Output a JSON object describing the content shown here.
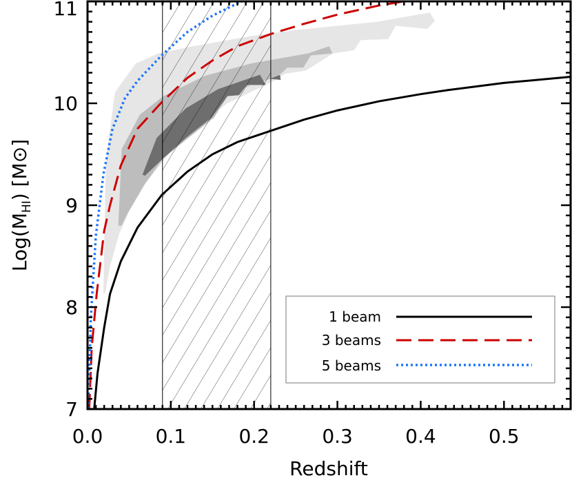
{
  "chart_data": {
    "type": "line",
    "xlabel": "Redshift",
    "ylabel": {
      "prefix": "Log(M",
      "sub": "HI",
      "suffix": ")  [M⊙]"
    },
    "xlim": [
      0,
      0.58
    ],
    "ylim": [
      7,
      11
    ],
    "xticks": [
      0.0,
      0.1,
      0.2,
      0.3,
      0.4,
      0.5
    ],
    "xtick_labels": [
      "0.0",
      "0.1",
      "0.2",
      "0.3",
      "0.4",
      "0.5"
    ],
    "yticks": [
      7,
      8,
      9,
      10,
      11
    ],
    "ytick_labels": [
      "7",
      "8",
      "9",
      "10",
      "11"
    ],
    "grid": false,
    "legend_position": "bottom-right",
    "shaded_band": {
      "x_range": [
        0.09,
        0.22
      ],
      "pattern": "diagonal-hatch"
    },
    "series": [
      {
        "name": "1 beam",
        "color": "#000000",
        "style": "solid",
        "x": [
          0.008,
          0.012,
          0.02,
          0.027,
          0.04,
          0.06,
          0.089,
          0.12,
          0.15,
          0.18,
          0.22,
          0.26,
          0.3,
          0.35,
          0.4,
          0.433,
          0.5,
          0.58
        ],
        "y": [
          7.0,
          7.35,
          7.8,
          8.13,
          8.45,
          8.78,
          9.1,
          9.33,
          9.5,
          9.62,
          9.73,
          9.84,
          9.93,
          10.02,
          10.09,
          10.13,
          10.2,
          10.26
        ]
      },
      {
        "name": "3 beams",
        "color": "#cc0000",
        "style": "dashed",
        "x": [
          0.002,
          0.005,
          0.011,
          0.02,
          0.027,
          0.04,
          0.06,
          0.089,
          0.12,
          0.15,
          0.18,
          0.22,
          0.26,
          0.3,
          0.35,
          0.38
        ],
        "y": [
          7.0,
          7.6,
          8.13,
          8.75,
          9.0,
          9.39,
          9.75,
          10.01,
          10.25,
          10.42,
          10.56,
          10.68,
          10.78,
          10.87,
          10.96,
          11.0
        ]
      },
      {
        "name": "5 beams",
        "color": "#1a75ff",
        "style": "dotted",
        "x": [
          0.001,
          0.004,
          0.01,
          0.019,
          0.03,
          0.045,
          0.06,
          0.089,
          0.12,
          0.15,
          0.185
        ],
        "y": [
          7.0,
          7.9,
          8.7,
          9.3,
          9.75,
          10.05,
          10.22,
          10.47,
          10.7,
          10.86,
          11.0
        ]
      }
    ],
    "contours": [
      {
        "level": "outer",
        "color": "#e6e6e6",
        "points": [
          [
            0.019,
            8.14
          ],
          [
            0.022,
            9.44
          ],
          [
            0.033,
            10.11
          ],
          [
            0.058,
            10.39
          ],
          [
            0.085,
            10.49
          ],
          [
            0.127,
            10.56
          ],
          [
            0.196,
            10.66
          ],
          [
            0.251,
            10.72
          ],
          [
            0.348,
            10.8
          ],
          [
            0.411,
            10.89
          ],
          [
            0.417,
            10.81
          ],
          [
            0.408,
            10.73
          ],
          [
            0.37,
            10.76
          ],
          [
            0.361,
            10.63
          ],
          [
            0.328,
            10.62
          ],
          [
            0.32,
            10.52
          ],
          [
            0.295,
            10.49
          ],
          [
            0.262,
            10.32
          ],
          [
            0.237,
            10.29
          ],
          [
            0.224,
            10.22
          ],
          [
            0.168,
            10.0
          ],
          [
            0.113,
            9.66
          ],
          [
            0.069,
            9.21
          ],
          [
            0.05,
            8.94
          ],
          [
            0.038,
            8.72
          ],
          [
            0.027,
            8.4
          ],
          [
            0.021,
            8.13
          ]
        ]
      },
      {
        "level": "middle",
        "color": "#bdbdbd",
        "points": [
          [
            0.037,
            8.8
          ],
          [
            0.041,
            9.55
          ],
          [
            0.063,
            9.89
          ],
          [
            0.091,
            10.07
          ],
          [
            0.141,
            10.27
          ],
          [
            0.196,
            10.39
          ],
          [
            0.265,
            10.49
          ],
          [
            0.29,
            10.56
          ],
          [
            0.294,
            10.49
          ],
          [
            0.268,
            10.47
          ],
          [
            0.259,
            10.35
          ],
          [
            0.24,
            10.35
          ],
          [
            0.232,
            10.29
          ],
          [
            0.22,
            10.24
          ],
          [
            0.196,
            10.18
          ],
          [
            0.168,
            10.07
          ],
          [
            0.152,
            9.86
          ],
          [
            0.121,
            9.66
          ],
          [
            0.091,
            9.46
          ],
          [
            0.069,
            9.21
          ],
          [
            0.048,
            8.92
          ],
          [
            0.041,
            8.8
          ]
        ]
      },
      {
        "level": "inner",
        "color": "#6e6e6e",
        "points": [
          [
            0.066,
            9.3
          ],
          [
            0.083,
            9.66
          ],
          [
            0.118,
            9.95
          ],
          [
            0.157,
            10.14
          ],
          [
            0.207,
            10.28
          ],
          [
            0.214,
            10.18
          ],
          [
            0.191,
            10.18
          ],
          [
            0.182,
            10.08
          ],
          [
            0.168,
            10.07
          ],
          [
            0.149,
            9.86
          ],
          [
            0.118,
            9.66
          ],
          [
            0.091,
            9.46
          ],
          [
            0.069,
            9.29
          ]
        ]
      },
      {
        "level": "inner",
        "color": "#6e6e6e",
        "points": [
          [
            0.219,
            10.24
          ],
          [
            0.231,
            10.28
          ],
          [
            0.232,
            10.23
          ]
        ]
      }
    ]
  }
}
